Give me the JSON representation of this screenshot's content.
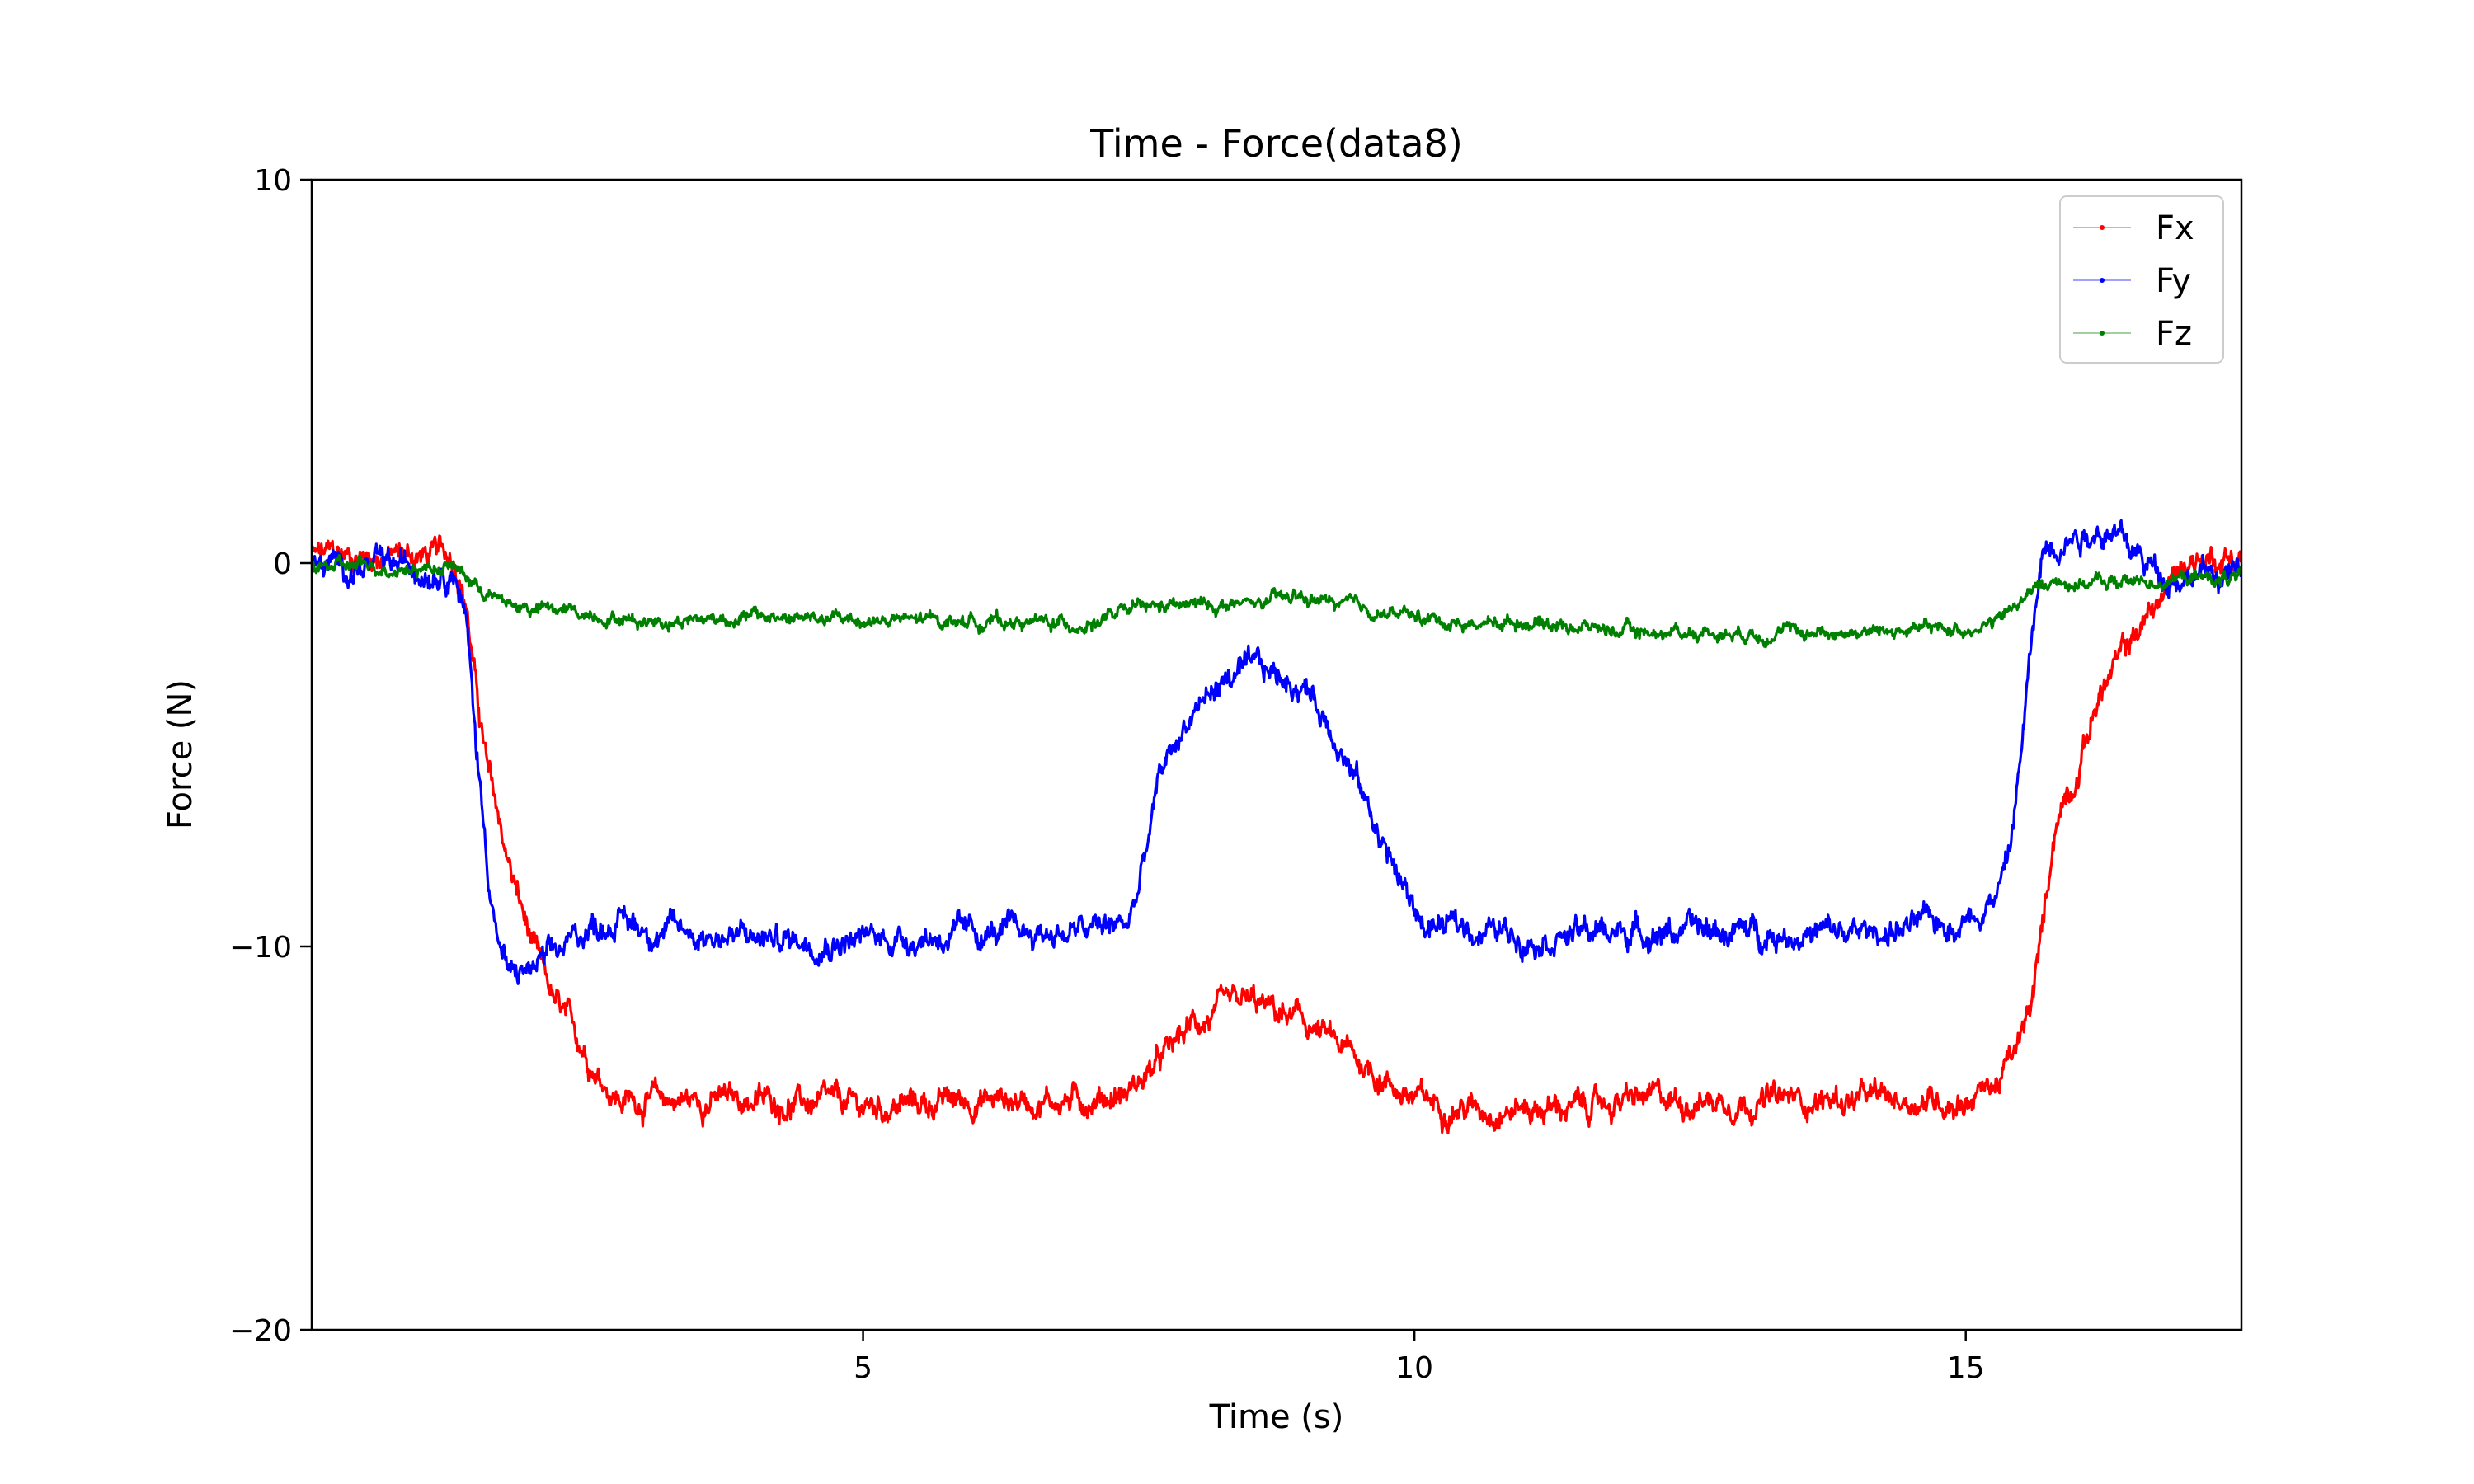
{
  "chart_data": {
    "type": "line",
    "title": "Time - Force(data8)",
    "xlabel": "Time (s)",
    "ylabel": "Force (N)",
    "xlim": [
      0,
      17.5
    ],
    "ylim": [
      -20,
      10
    ],
    "xticks": [
      5,
      10,
      15
    ],
    "yticks": [
      10,
      0,
      -10,
      -20
    ],
    "xtick_labels": [
      "5",
      "10",
      "15"
    ],
    "ytick_labels": [
      "10",
      "0",
      "−10",
      "−20"
    ],
    "grid": false,
    "legend_position": "top-right",
    "series": [
      {
        "name": "Fx",
        "color": "#ff0000",
        "noise": 0.35,
        "x": [
          0,
          1.3,
          1.4,
          1.5,
          1.6,
          1.8,
          2.0,
          2.2,
          2.5,
          2.6,
          2.8,
          3.0,
          3.5,
          4.0,
          5.0,
          6.0,
          7.0,
          7.4,
          7.7,
          8.0,
          8.5,
          9.0,
          9.5,
          10.0,
          10.5,
          11.0,
          11.5,
          12.0,
          13.0,
          14.0,
          15.0,
          15.3,
          15.5,
          15.6,
          15.7,
          15.8,
          15.9,
          16.0,
          16.2,
          16.5,
          16.8,
          17.0,
          17.5
        ],
        "y": [
          0.2,
          0.2,
          -1.0,
          -3.5,
          -5.5,
          -8.0,
          -10.0,
          -11.5,
          -12.8,
          -13.3,
          -14.0,
          -14.0,
          -14.0,
          -14.0,
          -14.2,
          -14.0,
          -14.0,
          -13.8,
          -13.0,
          -12.0,
          -11.5,
          -12.0,
          -13.0,
          -14.0,
          -14.2,
          -14.2,
          -14.2,
          -14.0,
          -14.0,
          -14.0,
          -14.0,
          -13.5,
          -12.5,
          -11.5,
          -9.5,
          -7.0,
          -6.0,
          -5.5,
          -3.5,
          -2.0,
          -0.8,
          0.1,
          0.2
        ]
      },
      {
        "name": "Fy",
        "color": "#0000ff",
        "noise": 0.35,
        "x": [
          0,
          1.3,
          1.4,
          1.5,
          1.6,
          1.7,
          1.8,
          2.0,
          2.2,
          2.5,
          2.8,
          3.0,
          4.0,
          5.0,
          6.0,
          7.0,
          7.4,
          7.5,
          7.7,
          8.0,
          8.3,
          8.6,
          9.0,
          9.3,
          9.6,
          9.9,
          10.1,
          10.5,
          11.0,
          12.0,
          13.0,
          14.0,
          15.0,
          15.3,
          15.4,
          15.5,
          15.6,
          15.7,
          15.8,
          16.0,
          16.3,
          16.5,
          16.8,
          17.0,
          17.5
        ],
        "y": [
          -0.1,
          -0.1,
          -1.5,
          -5.0,
          -8.0,
          -10.0,
          -10.8,
          -10.6,
          -10.3,
          -9.5,
          -9.3,
          -9.5,
          -9.8,
          -9.8,
          -9.7,
          -9.6,
          -9.4,
          -8.5,
          -5.5,
          -3.8,
          -3.0,
          -2.8,
          -3.2,
          -4.5,
          -6.5,
          -8.5,
          -9.5,
          -9.5,
          -9.7,
          -9.6,
          -9.6,
          -9.7,
          -9.3,
          -8.5,
          -7.5,
          -5.0,
          -2.0,
          0.3,
          0.6,
          0.8,
          0.9,
          0.3,
          -0.3,
          -0.3,
          -0.3
        ]
      },
      {
        "name": "Fz",
        "color": "#008000",
        "noise": 0.18,
        "x": [
          0,
          1.3,
          1.5,
          1.7,
          2.0,
          2.5,
          3.0,
          4.0,
          5.0,
          6.0,
          7.0,
          7.5,
          8.0,
          8.5,
          8.7,
          8.9,
          9.2,
          9.5,
          10.0,
          10.5,
          11.0,
          12.0,
          13.0,
          14.0,
          15.0,
          15.3,
          15.5,
          15.6,
          15.8,
          16.0,
          16.5,
          17.0,
          17.5
        ],
        "y": [
          -0.1,
          -0.1,
          -0.6,
          -1.0,
          -1.2,
          -1.3,
          -1.5,
          -1.4,
          -1.5,
          -1.5,
          -1.6,
          -1.2,
          -1.1,
          -1.1,
          -1.0,
          -0.9,
          -1.0,
          -1.2,
          -1.4,
          -1.6,
          -1.5,
          -1.8,
          -1.8,
          -1.8,
          -1.7,
          -1.5,
          -1.0,
          -0.7,
          -0.5,
          -0.5,
          -0.5,
          -0.4,
          -0.4
        ]
      }
    ]
  }
}
